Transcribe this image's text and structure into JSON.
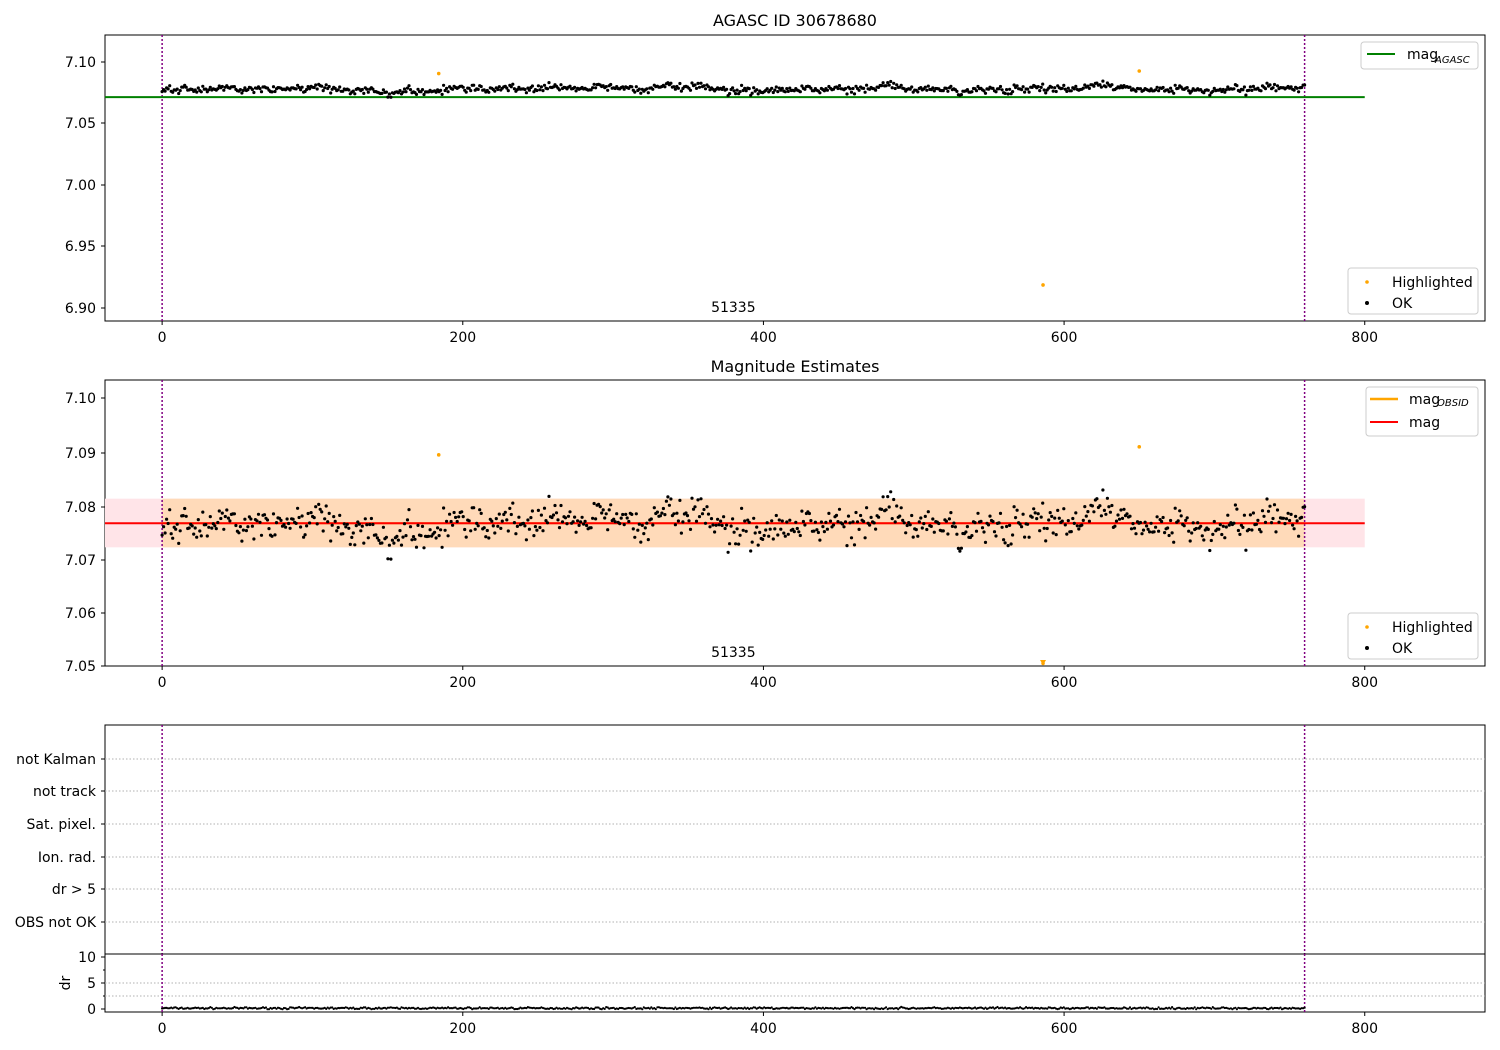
{
  "chart_data": [
    {
      "type": "scatter",
      "title": "AGASC ID 30678680",
      "annotation": "51335",
      "xlim": [
        -38,
        880
      ],
      "ylim": [
        6.89,
        7.12
      ],
      "x_ticks": [
        "0",
        "200",
        "400",
        "600",
        "800"
      ],
      "y_ticks": [
        "7.10",
        "7.05",
        "7.00",
        "6.95",
        "6.90"
      ],
      "vlines": [
        0,
        760
      ],
      "hline": {
        "label": "mag",
        "subscript": "AGASC",
        "value": 7.07,
        "x_range": [
          -38,
          800
        ],
        "color": "#008000"
      },
      "highlighted": {
        "label": "Highlighted",
        "color": "#ffa500",
        "points": [
          [
            184,
            7.089
          ],
          [
            650,
            7.091
          ],
          [
            586,
            6.919
          ]
        ]
      },
      "ok_series": {
        "label": "OK",
        "color": "#000000",
        "x_range": [
          0,
          760
        ],
        "count": 760,
        "y_mean": 7.0767,
        "y_spread": 0.0045
      }
    },
    {
      "type": "scatter",
      "title": "Magnitude Estimates",
      "annotation": "51335",
      "xlim": [
        -38,
        880
      ],
      "ylim": [
        7.05,
        7.1035
      ],
      "x_ticks": [
        "0",
        "200",
        "400",
        "600",
        "800"
      ],
      "y_ticks": [
        "7.10",
        "7.09",
        "7.08",
        "7.07",
        "7.06",
        "7.05"
      ],
      "vlines": [
        0,
        760
      ],
      "mag_line": {
        "label": "mag",
        "value": 7.0767,
        "band": [
          7.0722,
          7.0813
        ],
        "x_range": [
          -38,
          800
        ],
        "color": "#ff0000"
      },
      "obsid_line": {
        "label": "mag",
        "subscript": "OBSID",
        "color": "#ffa500",
        "band_color": "#ffdab9"
      },
      "highlighted": {
        "label": "Highlighted",
        "color": "#ffa500",
        "points": [
          [
            184,
            7.0895
          ],
          [
            650,
            7.091
          ],
          [
            586,
            7.0505
          ]
        ]
      },
      "ok_series": {
        "label": "OK",
        "color": "#000000",
        "x_range": [
          0,
          760
        ],
        "count": 760,
        "y_mean": 7.0767,
        "y_spread": 0.0045
      }
    },
    {
      "type": "scatter",
      "xlim": [
        -38,
        880
      ],
      "categories": [
        "not Kalman",
        "not track",
        "Sat. pixel.",
        "Ion. rad.",
        "dr > 5",
        "OBS not OK"
      ],
      "vlines": [
        0,
        760
      ]
    },
    {
      "type": "scatter",
      "ylabel": "dr",
      "xlim": [
        -38,
        880
      ],
      "ylim": [
        -0.5,
        10.2
      ],
      "x_ticks": [
        "0",
        "200",
        "400",
        "600",
        "800"
      ],
      "y_ticks": [
        "10",
        "5",
        "0"
      ],
      "vlines": [
        0,
        760
      ],
      "dr_series": {
        "x_range": [
          0,
          760
        ],
        "count": 760,
        "y_mean": 0.2,
        "y_spread": 0.15
      }
    }
  ]
}
